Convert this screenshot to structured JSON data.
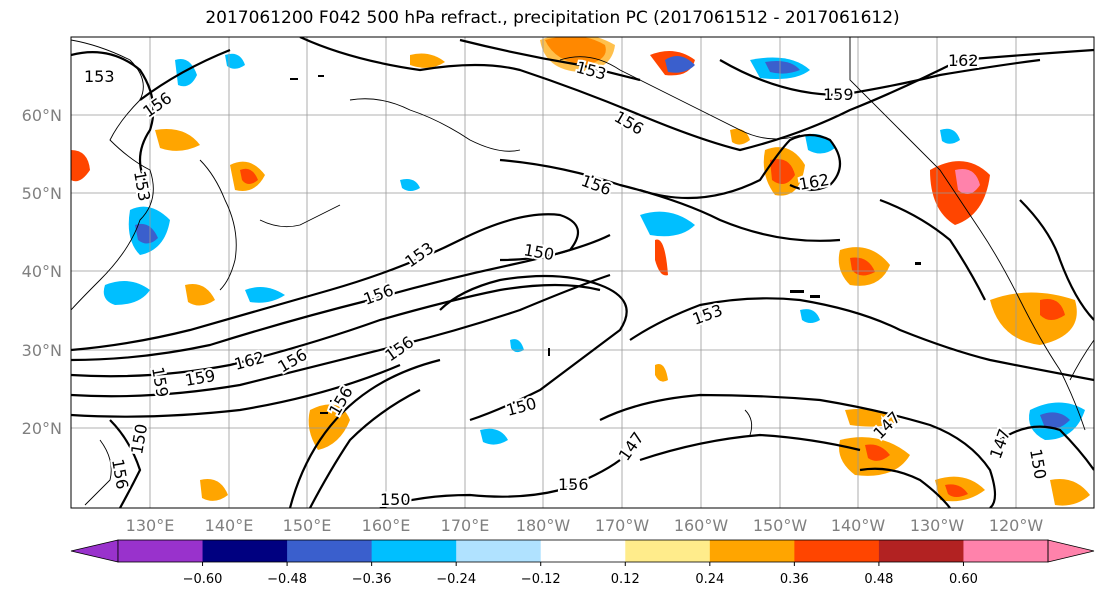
{
  "title": "2017061200 F042 500 hPa refract., precipitation PC (2017061512 - 2017061612)",
  "map": {
    "lat_labels": [
      "60°N",
      "50°N",
      "40°N",
      "30°N",
      "20°N"
    ],
    "lon_labels": [
      "130°E",
      "140°E",
      "150°E",
      "160°E",
      "170°E",
      "180°W",
      "170°W",
      "160°W",
      "150°W",
      "140°W",
      "130°W",
      "120°W"
    ]
  },
  "contour_labels": [
    "153",
    "156",
    "153",
    "153",
    "162",
    "159",
    "156",
    "156",
    "162",
    "153",
    "150",
    "156",
    "153",
    "162",
    "159",
    "156",
    "156",
    "156",
    "150",
    "147",
    "147",
    "150",
    "147",
    "150",
    "156",
    "159",
    "150",
    "156"
  ],
  "colorbar": {
    "colors": [
      "#9932cc",
      "#000080",
      "#3a5fcd",
      "#00bfff",
      "#b0e2ff",
      "#ffffff",
      "#ffec8b",
      "#ffa500",
      "#ff4500",
      "#b22222",
      "#ff82ab"
    ],
    "tick_labels": [
      "−0.60",
      "−0.48",
      "−0.36",
      "−0.24",
      "−0.12",
      "0.12",
      "0.24",
      "0.36",
      "0.48",
      "0.60"
    ]
  }
}
